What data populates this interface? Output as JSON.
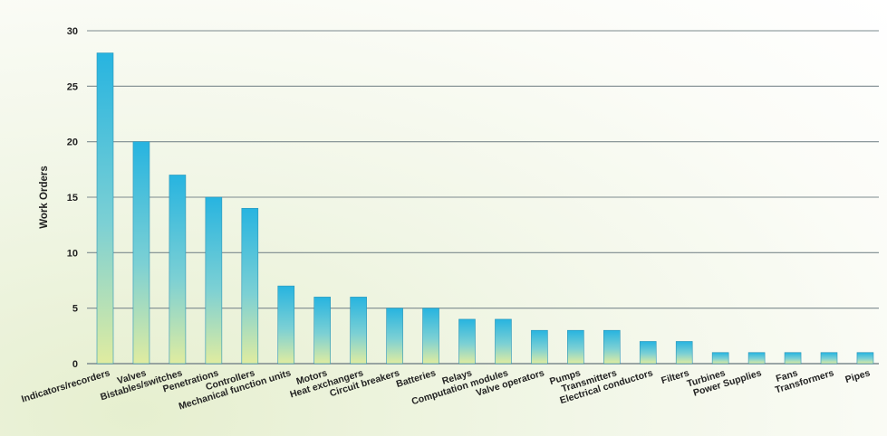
{
  "chart_data": {
    "type": "bar",
    "title": "",
    "xlabel": "",
    "ylabel": "Work Orders",
    "ylim": [
      0,
      30
    ],
    "yticks": [
      0,
      5,
      10,
      15,
      20,
      25,
      30
    ],
    "grid": true,
    "categories": [
      "Indicators/recorders",
      "Valves",
      "Bistables/switches",
      "Penetrations",
      "Controllers",
      "Mechanical function units",
      "Motors",
      "Heat exchangers",
      "Circuit breakers",
      "Batteries",
      "Relays",
      "Computation modules",
      "Valve operators",
      "Pumps",
      "Transmitters",
      "Electrical conductors",
      "Filters",
      "Turbines",
      "Power Supplies",
      "Fans",
      "Transformers",
      "Pipes"
    ],
    "values": [
      28,
      20,
      17,
      15,
      14,
      7,
      6,
      6,
      5,
      5,
      4,
      4,
      3,
      3,
      3,
      2,
      2,
      1,
      1,
      1,
      1,
      1
    ],
    "colors": {
      "bar_top": "#27b4e0",
      "bar_bottom": "#e0eca0",
      "grid": "#7c8a8e",
      "text": "#222222"
    }
  }
}
